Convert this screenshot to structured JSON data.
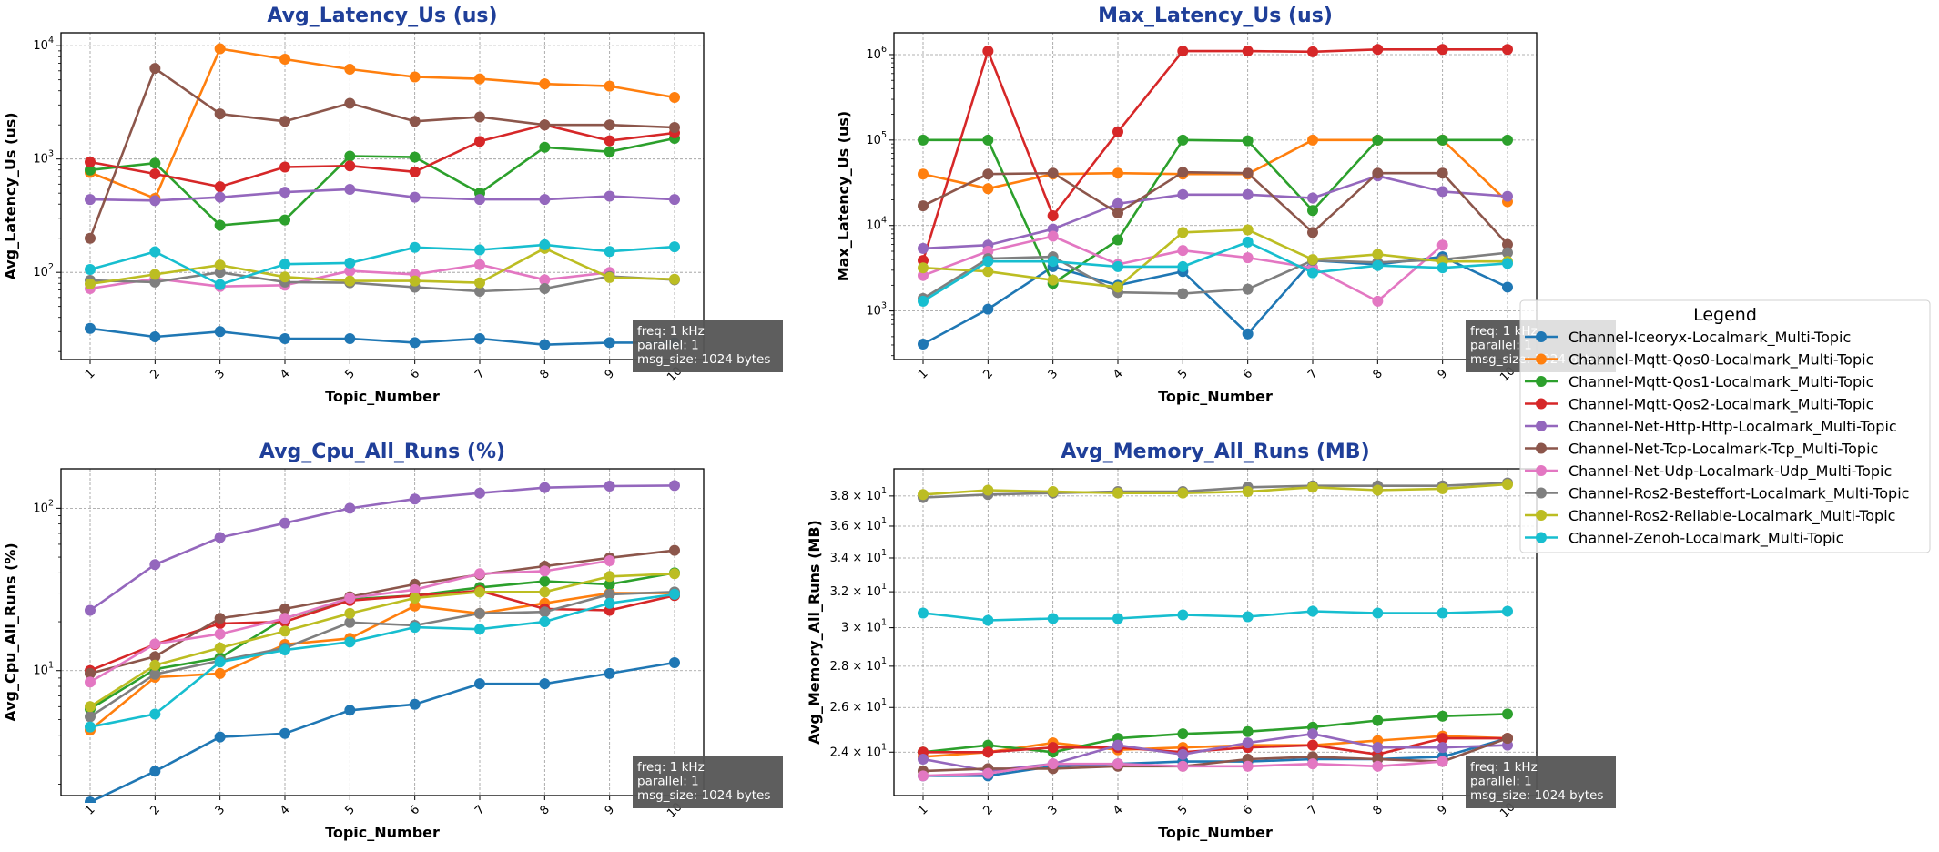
{
  "figure": {
    "x_ticks": [
      "1",
      "2",
      "3",
      "4",
      "5",
      "6",
      "7",
      "8",
      "9",
      "10"
    ],
    "xlabel": "Topic_Number",
    "info_box": [
      "freq: 1 kHz",
      "parallel: 1",
      "msg_size: 1024 bytes"
    ],
    "legend": {
      "title": "Legend",
      "placement": "right"
    }
  },
  "series_meta": [
    {
      "name": "Channel-Iceoryx-Localmark_Multi-Topic",
      "color": "#1f77b4"
    },
    {
      "name": "Channel-Mqtt-Qos0-Localmark_Multi-Topic",
      "color": "#ff7f0e"
    },
    {
      "name": "Channel-Mqtt-Qos1-Localmark_Multi-Topic",
      "color": "#2ca02c"
    },
    {
      "name": "Channel-Mqtt-Qos2-Localmark_Multi-Topic",
      "color": "#d62728"
    },
    {
      "name": "Channel-Net-Http-Http-Localmark_Multi-Topic",
      "color": "#9467bd"
    },
    {
      "name": "Channel-Net-Tcp-Localmark-Tcp_Multi-Topic",
      "color": "#8c564b"
    },
    {
      "name": "Channel-Net-Udp-Localmark-Udp_Multi-Topic",
      "color": "#e377c2"
    },
    {
      "name": "Channel-Ros2-Besteffort-Localmark_Multi-Topic",
      "color": "#7f7f7f"
    },
    {
      "name": "Channel-Ros2-Reliable-Localmark_Multi-Topic",
      "color": "#bcbd22"
    },
    {
      "name": "Channel-Zenoh-Localmark_Multi-Topic",
      "color": "#17becf"
    }
  ],
  "chart_data": [
    {
      "type": "line",
      "title": "Avg_Latency_Us  (us)",
      "xlabel": "Topic_Number",
      "ylabel": "Avg_Latency_Us (us)",
      "yscale": "log",
      "ylim": [
        17,
        13000
      ],
      "y_ticks": [
        {
          "v": 100,
          "label": "10^2"
        },
        {
          "v": 1000,
          "label": "10^3"
        },
        {
          "v": 10000,
          "label": "10^4"
        }
      ],
      "x": [
        1,
        2,
        3,
        4,
        5,
        6,
        7,
        8,
        9,
        10
      ],
      "grid": true,
      "series": [
        {
          "name": "Channel-Iceoryx-Localmark_Multi-Topic",
          "values": [
            32,
            27,
            30,
            26,
            26,
            24,
            26,
            23,
            24,
            24
          ]
        },
        {
          "name": "Channel-Mqtt-Qos0-Localmark_Multi-Topic",
          "values": [
            760,
            450,
            9400,
            7600,
            6200,
            5300,
            5100,
            4600,
            4400,
            3500
          ]
        },
        {
          "name": "Channel-Mqtt-Qos1-Localmark_Multi-Topic",
          "values": [
            800,
            920,
            260,
            290,
            1060,
            1040,
            500,
            1270,
            1160,
            1520
          ]
        },
        {
          "name": "Channel-Mqtt-Qos2-Localmark_Multi-Topic",
          "values": [
            940,
            740,
            570,
            850,
            870,
            770,
            1430,
            2000,
            1450,
            1700
          ]
        },
        {
          "name": "Channel-Net-Http-Http-Localmark_Multi-Topic",
          "values": [
            440,
            430,
            460,
            510,
            540,
            460,
            440,
            440,
            470,
            440
          ]
        },
        {
          "name": "Channel-Net-Tcp-Localmark-Tcp_Multi-Topic",
          "values": [
            200,
            6300,
            2500,
            2150,
            3100,
            2150,
            2350,
            2000,
            2000,
            1900
          ]
        },
        {
          "name": "Channel-Net-Udp-Localmark-Udp_Multi-Topic",
          "values": [
            72,
            88,
            75,
            77,
            103,
            96,
            117,
            86,
            100,
            null
          ]
        },
        {
          "name": "Channel-Ros2-Besteffort-Localmark_Multi-Topic",
          "values": [
            85,
            82,
            100,
            82,
            81,
            74,
            68,
            72,
            92,
            86
          ]
        },
        {
          "name": "Channel-Ros2-Reliable-Localmark_Multi-Topic",
          "values": [
            79,
            96,
            116,
            91,
            84,
            84,
            81,
            163,
            90,
            87
          ]
        },
        {
          "name": "Channel-Zenoh-Localmark_Multi-Topic",
          "values": [
            106,
            152,
            78,
            118,
            121,
            166,
            158,
            175,
            153,
            168
          ]
        }
      ]
    },
    {
      "type": "line",
      "title": "Max_Latency_Us  (us)",
      "xlabel": "Topic_Number",
      "ylabel": "Max_Latency_Us (us)",
      "yscale": "log",
      "ylim": [
        270,
        1800000
      ],
      "y_ticks": [
        {
          "v": 1000,
          "label": "10^3"
        },
        {
          "v": 10000,
          "label": "10^4"
        },
        {
          "v": 100000,
          "label": "10^5"
        },
        {
          "v": 1000000,
          "label": "10^6"
        }
      ],
      "x": [
        1,
        2,
        3,
        4,
        5,
        6,
        7,
        8,
        9,
        10
      ],
      "grid": true,
      "series": [
        {
          "name": "Channel-Iceoryx-Localmark_Multi-Topic",
          "values": [
            410,
            1050,
            3300,
            2000,
            2900,
            540,
            3900,
            3500,
            4300,
            1900
          ]
        },
        {
          "name": "Channel-Mqtt-Qos0-Localmark_Multi-Topic",
          "values": [
            40000,
            27000,
            40000,
            41000,
            40000,
            40000,
            100000,
            100000,
            100000,
            19000
          ]
        },
        {
          "name": "Channel-Mqtt-Qos1-Localmark_Multi-Topic",
          "values": [
            100000,
            100000,
            2100,
            6800,
            100000,
            98000,
            15000,
            100000,
            100000,
            100000
          ]
        },
        {
          "name": "Channel-Mqtt-Qos2-Localmark_Multi-Topic",
          "values": [
            3900,
            1100000,
            13000,
            125000,
            1100000,
            1100000,
            1080000,
            1150000,
            1150000,
            1150000
          ]
        },
        {
          "name": "Channel-Net-Http-Http-Localmark_Multi-Topic",
          "values": [
            5400,
            5900,
            9100,
            18000,
            23000,
            23000,
            21000,
            38000,
            25000,
            22000
          ]
        },
        {
          "name": "Channel-Net-Tcp-Localmark-Tcp_Multi-Topic",
          "values": [
            17000,
            40000,
            41000,
            14000,
            42000,
            41000,
            8300,
            41000,
            41000,
            6000
          ]
        },
        {
          "name": "Channel-Net-Udp-Localmark-Udp_Multi-Topic",
          "values": [
            2600,
            5000,
            7500,
            3500,
            5100,
            4200,
            3200,
            1300,
            5900,
            null
          ]
        },
        {
          "name": "Channel-Ros2-Besteffort-Localmark_Multi-Topic",
          "values": [
            1400,
            4100,
            4300,
            1650,
            1600,
            1800,
            3900,
            3700,
            4000,
            4800
          ]
        },
        {
          "name": "Channel-Ros2-Reliable-Localmark_Multi-Topic",
          "values": [
            3200,
            2900,
            2300,
            1900,
            8300,
            8900,
            4000,
            4600,
            3800,
            3800
          ]
        },
        {
          "name": "Channel-Zenoh-Localmark_Multi-Topic",
          "values": [
            1300,
            3800,
            3800,
            3300,
            3300,
            6400,
            2800,
            3400,
            3200,
            3600
          ]
        }
      ]
    },
    {
      "type": "line",
      "title": "Avg_Cpu_All_Runs  (%)",
      "xlabel": "Topic_Number",
      "ylabel": "Avg_Cpu_All_Runs (%)",
      "yscale": "log",
      "ylim": [
        1.7,
        175
      ],
      "y_ticks": [
        {
          "v": 10,
          "label": "10^1"
        },
        {
          "v": 100,
          "label": "10^2"
        }
      ],
      "x": [
        1,
        2,
        3,
        4,
        5,
        6,
        7,
        8,
        9,
        10
      ],
      "grid": true,
      "series": [
        {
          "name": "Channel-Iceoryx-Localmark_Multi-Topic",
          "values": [
            1.55,
            2.4,
            3.9,
            4.1,
            5.7,
            6.2,
            8.3,
            8.3,
            9.6,
            11.2
          ]
        },
        {
          "name": "Channel-Mqtt-Qos0-Localmark_Multi-Topic",
          "values": [
            4.3,
            9.1,
            9.6,
            14.5,
            15.8,
            25,
            22.5,
            26,
            30,
            30
          ]
        },
        {
          "name": "Channel-Mqtt-Qos1-Localmark_Multi-Topic",
          "values": [
            5.8,
            10.2,
            12,
            21,
            27.5,
            29,
            32.5,
            35.5,
            34,
            40
          ]
        },
        {
          "name": "Channel-Mqtt-Qos2-Localmark_Multi-Topic",
          "values": [
            10,
            14.5,
            19.5,
            20,
            27,
            29,
            31,
            24,
            23.5,
            29
          ]
        },
        {
          "name": "Channel-Net-Http-Http-Localmark_Multi-Topic",
          "values": [
            23.5,
            45,
            66,
            81,
            100,
            114,
            124,
            134,
            137,
            138
          ]
        },
        {
          "name": "Channel-Net-Tcp-Localmark-Tcp_Multi-Topic",
          "values": [
            9.6,
            12.2,
            21,
            24,
            28.5,
            34,
            39,
            44,
            49.5,
            55
          ]
        },
        {
          "name": "Channel-Net-Udp-Localmark-Udp_Multi-Topic",
          "values": [
            8.5,
            14.6,
            16.8,
            21,
            28,
            31.5,
            39.5,
            41,
            47.5,
            null
          ]
        },
        {
          "name": "Channel-Ros2-Besteffort-Localmark_Multi-Topic",
          "values": [
            5.2,
            9.5,
            11.5,
            13.8,
            19.8,
            19,
            22.5,
            23,
            29.5,
            30.5
          ]
        },
        {
          "name": "Channel-Ros2-Reliable-Localmark_Multi-Topic",
          "values": [
            6,
            10.8,
            13.8,
            17.5,
            22.5,
            28,
            30.5,
            30.5,
            38,
            39.5
          ]
        },
        {
          "name": "Channel-Zenoh-Localmark_Multi-Topic",
          "values": [
            4.5,
            5.4,
            11.3,
            13.4,
            15,
            18.5,
            18,
            20,
            26,
            29.5
          ]
        }
      ]
    },
    {
      "type": "line",
      "title": "Avg_Memory_All_Runs  (MB)",
      "xlabel": "Topic_Number",
      "ylabel": "Avg_Memory_All_Runs (MB)",
      "yscale": "log",
      "ylim": [
        22.2,
        39.9
      ],
      "y_ticks": [
        {
          "v": 24,
          "label": "2.4 × 10^1"
        },
        {
          "v": 26,
          "label": "2.6 × 10^1"
        },
        {
          "v": 28,
          "label": "2.8 × 10^1"
        },
        {
          "v": 30,
          "label": "3 × 10^1"
        },
        {
          "v": 32,
          "label": "3.2 × 10^1"
        },
        {
          "v": 34,
          "label": "3.4 × 10^1"
        },
        {
          "v": 36,
          "label": "3.6 × 10^1"
        },
        {
          "v": 38,
          "label": "3.8 × 10^1"
        }
      ],
      "x": [
        1,
        2,
        3,
        4,
        5,
        6,
        7,
        8,
        9,
        10
      ],
      "grid": true,
      "series": [
        {
          "name": "Channel-Iceoryx-Localmark_Multi-Topic",
          "values": [
            23.0,
            23.0,
            23.4,
            23.5,
            23.6,
            23.6,
            23.7,
            23.7,
            23.8,
            24.6
          ]
        },
        {
          "name": "Channel-Mqtt-Qos0-Localmark_Multi-Topic",
          "values": [
            23.8,
            24.0,
            24.4,
            24.1,
            24.2,
            24.3,
            24.3,
            24.5,
            24.7,
            24.6
          ]
        },
        {
          "name": "Channel-Mqtt-Qos1-Localmark_Multi-Topic",
          "values": [
            24.0,
            24.3,
            24.0,
            24.6,
            24.8,
            24.9,
            25.1,
            25.4,
            25.6,
            25.7
          ]
        },
        {
          "name": "Channel-Mqtt-Qos2-Localmark_Multi-Topic",
          "values": [
            24.0,
            24.0,
            24.2,
            24.2,
            24.0,
            24.2,
            24.3,
            23.9,
            24.6,
            24.6
          ]
        },
        {
          "name": "Channel-Net-Http-Http-Localmark_Multi-Topic",
          "values": [
            23.7,
            23.2,
            23.5,
            24.3,
            23.9,
            24.4,
            24.8,
            24.2,
            24.2,
            24.3
          ]
        },
        {
          "name": "Channel-Net-Tcp-Localmark-Tcp_Multi-Topic",
          "values": [
            23.2,
            23.3,
            23.3,
            23.4,
            23.4,
            23.7,
            23.8,
            23.7,
            23.6,
            24.6
          ]
        },
        {
          "name": "Channel-Net-Udp-Localmark-Udp_Multi-Topic",
          "values": [
            23.0,
            23.1,
            23.5,
            23.5,
            23.4,
            23.4,
            23.5,
            23.4,
            23.6,
            null
          ]
        },
        {
          "name": "Channel-Ros2-Besteffort-Localmark_Multi-Topic",
          "values": [
            37.9,
            38.1,
            38.2,
            38.3,
            38.3,
            38.6,
            38.7,
            38.7,
            38.7,
            38.9
          ]
        },
        {
          "name": "Channel-Ros2-Reliable-Localmark_Multi-Topic",
          "values": [
            38.1,
            38.4,
            38.3,
            38.2,
            38.2,
            38.3,
            38.6,
            38.4,
            38.5,
            38.8
          ]
        },
        {
          "name": "Channel-Zenoh-Localmark_Multi-Topic",
          "values": [
            30.8,
            30.4,
            30.5,
            30.5,
            30.7,
            30.6,
            30.9,
            30.8,
            30.8,
            30.9
          ]
        }
      ]
    }
  ]
}
